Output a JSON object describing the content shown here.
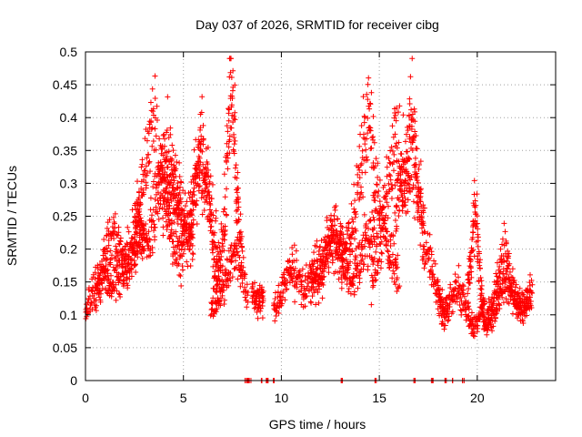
{
  "chart_data": {
    "type": "scatter",
    "title": "Day 037 of 2026, SRMTID for receiver cibg",
    "xlabel": "GPS time / hours",
    "ylabel": "SRMTID / TECUs",
    "xlim": [
      0,
      24
    ],
    "ylim": [
      0,
      0.5
    ],
    "grid": true,
    "marker": "+",
    "color": "#ff0000",
    "x_ticks": [
      0,
      5,
      10,
      15,
      20
    ],
    "x_tick_labels": [
      "0",
      "5",
      "10",
      "15",
      "20"
    ],
    "y_ticks": [
      0,
      0.05,
      0.1,
      0.15,
      0.2,
      0.25,
      0.3,
      0.35,
      0.4,
      0.45,
      0.5
    ],
    "y_tick_labels": [
      "0",
      "0.05",
      "0.1",
      "0.15",
      "0.2",
      "0.25",
      "0.3",
      "0.35",
      "0.4",
      "0.45",
      "0.5"
    ],
    "series": [
      {
        "name": "SRMTID",
        "note": "approximate per-satellite-arc trend samples read from the figure (x in hours, y in TECU)",
        "arcs": [
          {
            "x": [
              0.0,
              0.3,
              0.6,
              0.9,
              1.2,
              1.5,
              1.8,
              2.1,
              2.4,
              2.7,
              3.0
            ],
            "y": [
              0.1,
              0.13,
              0.15,
              0.17,
              0.16,
              0.15,
              0.16,
              0.17,
              0.2,
              0.22,
              0.24
            ]
          },
          {
            "x": [
              0.5,
              0.8,
              1.1,
              1.4,
              1.7,
              2.0,
              2.3,
              2.6,
              2.9,
              3.2,
              3.5,
              3.8,
              4.1,
              4.4,
              4.7,
              5.0
            ],
            "y": [
              0.12,
              0.16,
              0.2,
              0.22,
              0.2,
              0.18,
              0.21,
              0.24,
              0.22,
              0.2,
              0.25,
              0.3,
              0.27,
              0.23,
              0.2,
              0.18
            ]
          },
          {
            "x": [
              2.5,
              2.8,
              3.1,
              3.4,
              3.7,
              4.0,
              4.3,
              4.6,
              4.9,
              5.2,
              5.5
            ],
            "y": [
              0.22,
              0.27,
              0.33,
              0.4,
              0.36,
              0.3,
              0.28,
              0.3,
              0.26,
              0.22,
              0.2
            ]
          },
          {
            "x": [
              3.9,
              4.2,
              4.5,
              4.8,
              5.1,
              5.4,
              5.7,
              6.0,
              6.3,
              6.6,
              6.9
            ],
            "y": [
              0.32,
              0.34,
              0.3,
              0.25,
              0.22,
              0.26,
              0.33,
              0.32,
              0.27,
              0.22,
              0.17
            ]
          },
          {
            "x": [
              5.3,
              5.6,
              5.9,
              6.2,
              6.5,
              6.8,
              7.1,
              7.4,
              7.7,
              8.0,
              8.3
            ],
            "y": [
              0.2,
              0.3,
              0.36,
              0.3,
              0.2,
              0.12,
              0.15,
              0.18,
              0.2,
              0.16,
              0.12
            ]
          },
          {
            "x": [
              6.4,
              6.7,
              7.0,
              7.2,
              7.4,
              7.6,
              7.8,
              8.0
            ],
            "y": [
              0.1,
              0.14,
              0.2,
              0.3,
              0.45,
              0.38,
              0.25,
              0.2
            ]
          },
          {
            "x": [
              8.5,
              8.7,
              8.9,
              9.1
            ],
            "y": [
              0.14,
              0.12,
              0.13,
              0.12
            ]
          },
          {
            "x": [
              9.6,
              9.9,
              10.2,
              10.5,
              10.8,
              11.1,
              11.4,
              11.7,
              12.0,
              12.3,
              12.6,
              12.9,
              13.2
            ],
            "y": [
              0.11,
              0.12,
              0.15,
              0.17,
              0.16,
              0.14,
              0.15,
              0.17,
              0.18,
              0.2,
              0.22,
              0.2,
              0.18
            ]
          },
          {
            "x": [
              11.5,
              11.8,
              12.1,
              12.4,
              12.7,
              13.0,
              13.3,
              13.6,
              13.9,
              14.2,
              14.5,
              14.8
            ],
            "y": [
              0.13,
              0.15,
              0.17,
              0.2,
              0.22,
              0.2,
              0.17,
              0.15,
              0.18,
              0.2,
              0.22,
              0.24
            ]
          },
          {
            "x": [
              13.0,
              13.3,
              13.6,
              13.9,
              14.2,
              14.5,
              14.8,
              15.1,
              15.4,
              15.7,
              16.0
            ],
            "y": [
              0.18,
              0.2,
              0.23,
              0.28,
              0.36,
              0.42,
              0.3,
              0.25,
              0.2,
              0.18,
              0.16
            ]
          },
          {
            "x": [
              14.6,
              14.9,
              15.2,
              15.5,
              15.8,
              16.1,
              16.4,
              16.7,
              17.0,
              17.3
            ],
            "y": [
              0.15,
              0.2,
              0.24,
              0.3,
              0.38,
              0.32,
              0.3,
              0.34,
              0.28,
              0.2
            ]
          },
          {
            "x": [
              15.8,
              16.1,
              16.4,
              16.7,
              17.0,
              17.3,
              17.6,
              17.9,
              18.2,
              18.5
            ],
            "y": [
              0.25,
              0.3,
              0.33,
              0.42,
              0.3,
              0.22,
              0.18,
              0.14,
              0.12,
              0.1
            ]
          },
          {
            "x": [
              18.0,
              18.3,
              18.6,
              18.9,
              19.2,
              19.5,
              19.8,
              20.1,
              20.4
            ],
            "y": [
              0.12,
              0.1,
              0.12,
              0.14,
              0.13,
              0.1,
              0.08,
              0.1,
              0.12
            ]
          },
          {
            "x": [
              19.5,
              19.7,
              19.9,
              20.1,
              20.3,
              20.5,
              20.8,
              21.1,
              21.4,
              21.7,
              22.0,
              22.3,
              22.6
            ],
            "y": [
              0.14,
              0.2,
              0.27,
              0.18,
              0.1,
              0.08,
              0.1,
              0.12,
              0.15,
              0.14,
              0.12,
              0.12,
              0.13
            ]
          },
          {
            "x": [
              20.5,
              20.8,
              21.1,
              21.4,
              21.7,
              22.0,
              22.3,
              22.6,
              22.8
            ],
            "y": [
              0.1,
              0.12,
              0.16,
              0.2,
              0.15,
              0.12,
              0.1,
              0.12,
              0.14
            ]
          }
        ],
        "zero_level_x": [
          8.2,
          8.3,
          8.4,
          9.0,
          9.2,
          9.3,
          9.6,
          13.1,
          14.8,
          16.8,
          17.7,
          18.4,
          18.7,
          19.3
        ]
      }
    ]
  }
}
